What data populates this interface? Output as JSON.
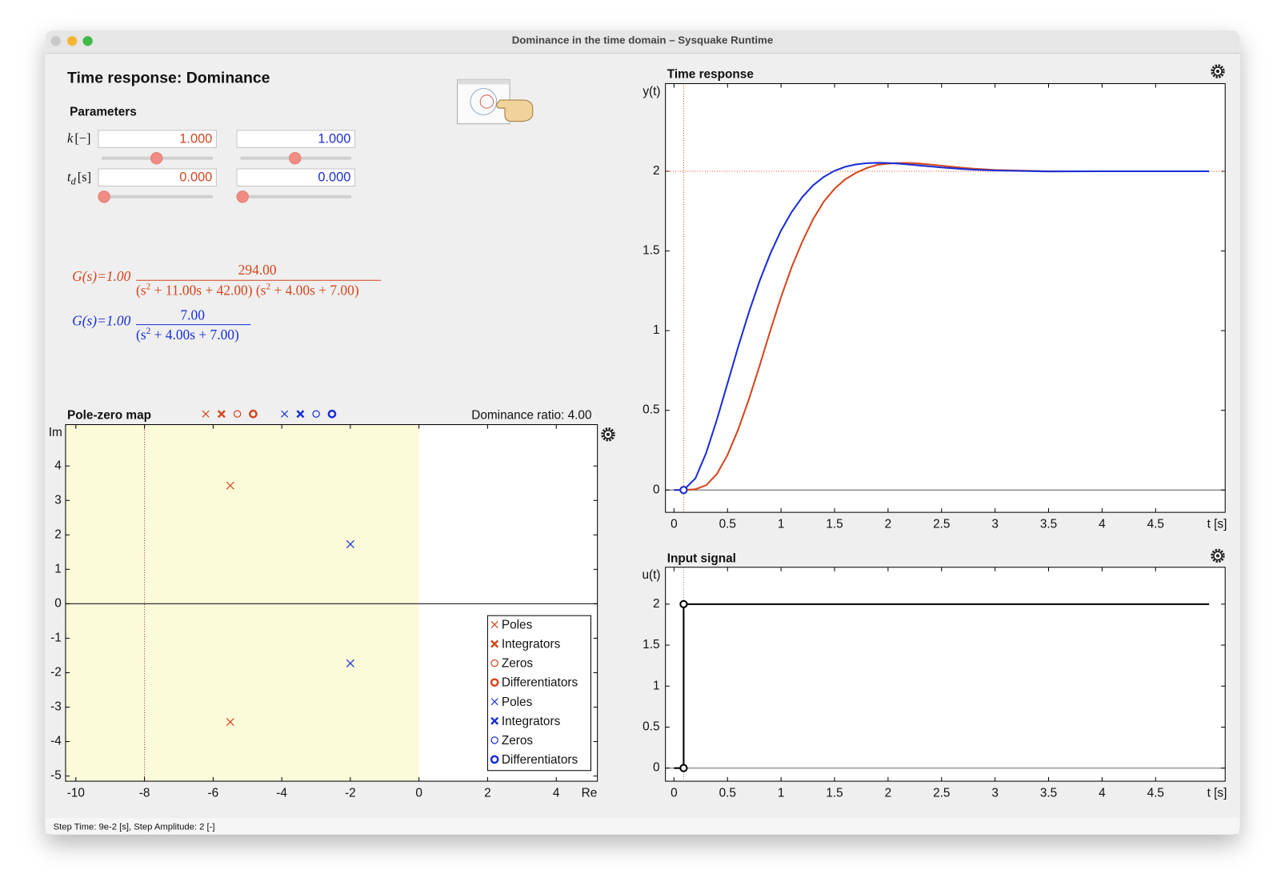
{
  "window": {
    "title": "Dominance in the time domain – Sysquake Runtime"
  },
  "heading": "Time response: Dominance",
  "parameters": {
    "title": "Parameters",
    "rows": [
      {
        "symbol": "k",
        "unit": "[−]",
        "values": [
          "1.000",
          "1.000"
        ]
      },
      {
        "symbol": "t",
        "subscript": "d",
        "unit": "[s]",
        "values": [
          "0.000",
          "0.000"
        ]
      }
    ]
  },
  "transfer_functions": [
    {
      "color": "#d4461e",
      "lhs": "G(s)=1.00",
      "numerator": "294.00",
      "denominator": [
        "(s",
        "2",
        " + 11.00s + 42.00) (s",
        "2",
        " + 4.00s + 7.00)"
      ]
    },
    {
      "color": "#1a2ed6",
      "lhs": "G(s)=1.00",
      "numerator": "7.00",
      "denominator": [
        "(s",
        "2",
        " + 4.00s + 7.00)"
      ]
    }
  ],
  "status_bar": "Step Time: 9e-2 [s], Step Amplitude: 2 [-]",
  "chart_data": [
    {
      "type": "scatter",
      "title": "Pole-zero map",
      "annotation": "Dominance ratio: 4.00",
      "xlabel": "Re",
      "ylabel": "Im",
      "xlim": [
        -10.3,
        5.2
      ],
      "ylim": [
        -5.15,
        5.2
      ],
      "xticks": [
        -10,
        -8,
        -6,
        -4,
        -2,
        0,
        2,
        4
      ],
      "yticks": [
        -5,
        -4,
        -3,
        -2,
        -1,
        0,
        1,
        2,
        3,
        4
      ],
      "dominance_line": -8,
      "region_color": "#fcfbd9",
      "legend": "lower right",
      "series": [
        {
          "name": "Poles",
          "color": "#d4461e",
          "marker": "x",
          "x": [
            -5.5,
            -5.5
          ],
          "values": [
            3.43,
            -3.43
          ]
        },
        {
          "name": "Integrators",
          "color": "#d4461e",
          "marker": "x-bold",
          "x": [],
          "values": []
        },
        {
          "name": "Zeros",
          "color": "#d4461e",
          "marker": "o",
          "x": [],
          "values": []
        },
        {
          "name": "Differentiators",
          "color": "#d4461e",
          "marker": "o-bold",
          "x": [],
          "values": []
        },
        {
          "name": "Poles",
          "color": "#1a2ed6",
          "marker": "x",
          "x": [
            -2,
            -2
          ],
          "values": [
            1.73,
            -1.73
          ]
        },
        {
          "name": "Integrators",
          "color": "#1a2ed6",
          "marker": "x-bold",
          "x": [],
          "values": []
        },
        {
          "name": "Zeros",
          "color": "#1a2ed6",
          "marker": "o",
          "x": [],
          "values": []
        },
        {
          "name": "Differentiators",
          "color": "#1a2ed6",
          "marker": "o-bold",
          "x": [],
          "values": []
        }
      ]
    },
    {
      "type": "line",
      "title": "Time response",
      "xlabel": "t [s]",
      "ylabel": "y(t)",
      "xlim": [
        -0.08,
        5.15
      ],
      "ylim": [
        -0.14,
        2.55
      ],
      "xticks": [
        0,
        0.5,
        1,
        1.5,
        2,
        2.5,
        3,
        3.5,
        4,
        4.5
      ],
      "yticks": [
        0,
        0.5,
        1,
        1.5,
        2
      ],
      "reference_lines": {
        "x": 0.09,
        "y": 2
      },
      "reference_color": "#d4461e",
      "x": [
        0,
        0.09,
        0.2,
        0.3,
        0.4,
        0.5,
        0.6,
        0.7,
        0.8,
        0.9,
        1.0,
        1.1,
        1.2,
        1.3,
        1.4,
        1.5,
        1.6,
        1.7,
        1.8,
        1.9,
        2.0,
        2.1,
        2.2,
        2.3,
        2.4,
        2.5,
        2.6,
        2.7,
        2.8,
        3.0,
        3.5,
        4,
        4.5,
        5
      ],
      "series": [
        {
          "color": "#d4461e",
          "values": [
            0,
            0,
            0.005,
            0.03,
            0.1,
            0.22,
            0.38,
            0.57,
            0.78,
            1.0,
            1.21,
            1.4,
            1.56,
            1.7,
            1.81,
            1.89,
            1.95,
            1.99,
            2.02,
            2.04,
            2.048,
            2.052,
            2.052,
            2.048,
            2.042,
            2.035,
            2.028,
            2.022,
            2.016,
            2.008,
            2.0,
            2.0,
            2.0,
            2.0
          ]
        },
        {
          "color": "#1a2ed6",
          "values": [
            0,
            0,
            0.073,
            0.232,
            0.44,
            0.669,
            0.899,
            1.116,
            1.312,
            1.483,
            1.628,
            1.745,
            1.839,
            1.912,
            1.965,
            2.003,
            2.028,
            2.043,
            2.051,
            2.053,
            2.052,
            2.048,
            2.042,
            2.036,
            2.03,
            2.024,
            2.019,
            2.014,
            2.01,
            2.005,
            1.999,
            2.0,
            2.0,
            2.0
          ]
        }
      ]
    },
    {
      "type": "line",
      "title": "Input signal",
      "xlabel": "t [s]",
      "ylabel": "u(t)",
      "xlim": [
        -0.08,
        5.15
      ],
      "ylim": [
        -0.16,
        2.45
      ],
      "xticks": [
        0,
        0.5,
        1,
        1.5,
        2,
        2.5,
        3,
        3.5,
        4,
        4.5
      ],
      "yticks": [
        0,
        0.5,
        1,
        1.5,
        2
      ],
      "reference_lines": {
        "x": 0.09
      },
      "reference_color": "#888888",
      "x": [
        0,
        0.09,
        0.09,
        5
      ],
      "series": [
        {
          "color": "#000000",
          "values": [
            0,
            0,
            2,
            2
          ]
        }
      ]
    }
  ]
}
